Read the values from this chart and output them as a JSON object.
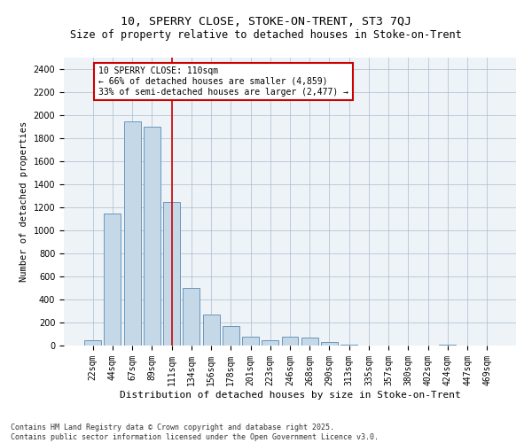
{
  "title1": "10, SPERRY CLOSE, STOKE-ON-TRENT, ST3 7QJ",
  "title2": "Size of property relative to detached houses in Stoke-on-Trent",
  "xlabel": "Distribution of detached houses by size in Stoke-on-Trent",
  "ylabel": "Number of detached properties",
  "categories": [
    "22sqm",
    "44sqm",
    "67sqm",
    "89sqm",
    "111sqm",
    "134sqm",
    "156sqm",
    "178sqm",
    "201sqm",
    "223sqm",
    "246sqm",
    "268sqm",
    "290sqm",
    "313sqm",
    "335sqm",
    "357sqm",
    "380sqm",
    "402sqm",
    "424sqm",
    "447sqm",
    "469sqm"
  ],
  "values": [
    50,
    1150,
    1950,
    1900,
    1250,
    500,
    270,
    170,
    80,
    50,
    80,
    70,
    30,
    5,
    2,
    2,
    2,
    1,
    5,
    1,
    1
  ],
  "bar_color": "#c5d8e8",
  "bar_edge_color": "#5a8ab5",
  "vline_color": "#cc0000",
  "annotation_text": "10 SPERRY CLOSE: 110sqm\n← 66% of detached houses are smaller (4,859)\n33% of semi-detached houses are larger (2,477) →",
  "annotation_box_color": "#ffffff",
  "annotation_box_edge": "#cc0000",
  "ylim": [
    0,
    2500
  ],
  "yticks": [
    0,
    200,
    400,
    600,
    800,
    1000,
    1200,
    1400,
    1600,
    1800,
    2000,
    2200,
    2400
  ],
  "bg_color": "#eef3f8",
  "footer": "Contains HM Land Registry data © Crown copyright and database right 2025.\nContains public sector information licensed under the Open Government Licence v3.0.",
  "title1_fontsize": 9.5,
  "title2_fontsize": 8.5,
  "xlabel_fontsize": 8,
  "ylabel_fontsize": 7.5,
  "tick_fontsize": 7,
  "annotation_fontsize": 7,
  "footer_fontsize": 6
}
